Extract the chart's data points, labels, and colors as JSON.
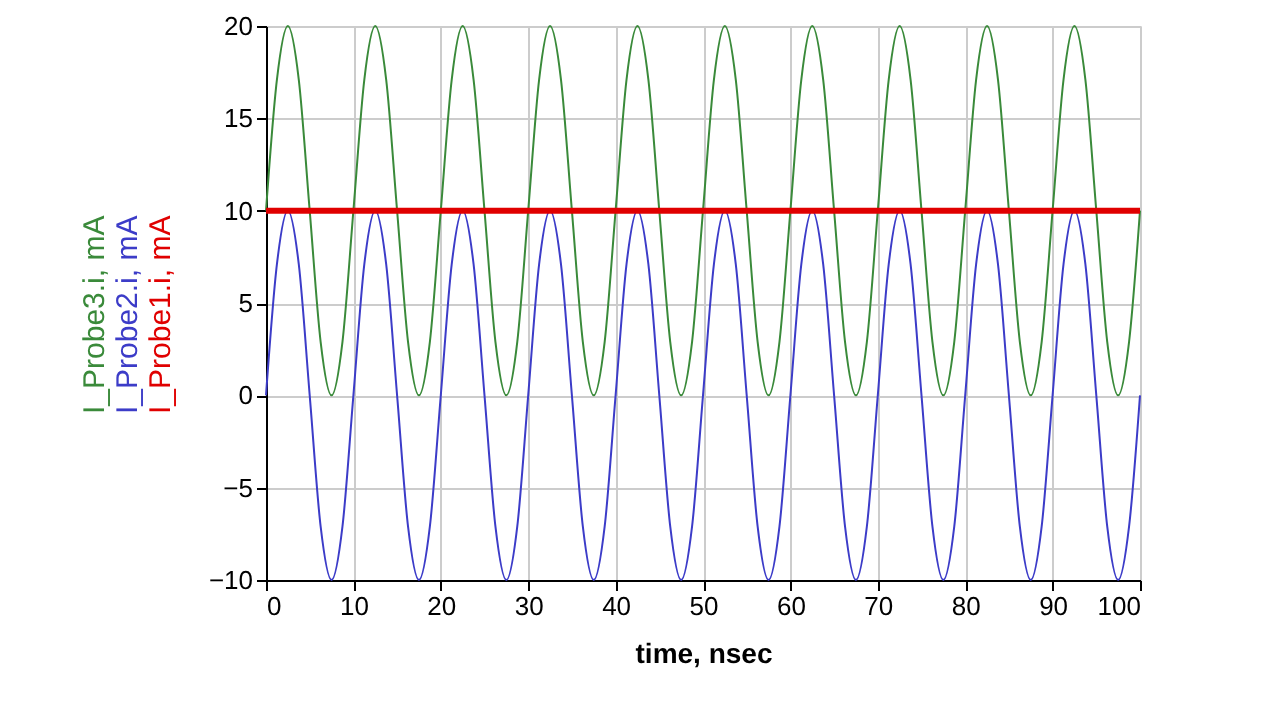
{
  "chart_data": {
    "type": "line",
    "xlabel": "time, nsec",
    "x": [
      0,
      1.25,
      2.5,
      3.75,
      5,
      6.25,
      7.5,
      8.75,
      10,
      11.25,
      12.5,
      13.75,
      15,
      16.25,
      17.5,
      18.75,
      20,
      21.25,
      22.5,
      23.75,
      25,
      26.25,
      27.5,
      28.75,
      30,
      31.25,
      32.5,
      33.75,
      35,
      36.25,
      37.5,
      38.75,
      40,
      41.25,
      42.5,
      43.75,
      45,
      46.25,
      47.5,
      48.75,
      50,
      51.25,
      52.5,
      53.75,
      55,
      56.25,
      57.5,
      58.75,
      60,
      61.25,
      62.5,
      63.75,
      65,
      66.25,
      67.5,
      68.75,
      70,
      71.25,
      72.5,
      73.75,
      75,
      76.25,
      77.5,
      78.75,
      80,
      81.25,
      82.5,
      83.75,
      85,
      86.25,
      87.5,
      88.75,
      90,
      91.25,
      92.5,
      93.75,
      95,
      96.25,
      97.5,
      98.75,
      100
    ],
    "series": [
      {
        "name": "I_Probe3.i, mA",
        "color": "#3a8a3a",
        "values": [
          10,
          17.1,
          20,
          17.1,
          10,
          2.9,
          0,
          2.9,
          10,
          17.1,
          20,
          17.1,
          10,
          2.9,
          0,
          2.9,
          10,
          17.1,
          20,
          17.1,
          10,
          2.9,
          0,
          2.9,
          10,
          17.1,
          20,
          17.1,
          10,
          2.9,
          0,
          2.9,
          10,
          17.1,
          20,
          17.1,
          10,
          2.9,
          0,
          2.9,
          10,
          17.1,
          20,
          17.1,
          10,
          2.9,
          0,
          2.9,
          10,
          17.1,
          20,
          17.1,
          10,
          2.9,
          0,
          2.9,
          10,
          17.1,
          20,
          17.1,
          10,
          2.9,
          0,
          2.9,
          10,
          17.1,
          20,
          17.1,
          10,
          2.9,
          0,
          2.9,
          10,
          17.1,
          20,
          17.1,
          10,
          2.9,
          0,
          2.9,
          10
        ]
      },
      {
        "name": "I_Probe2.i, mA",
        "color": "#3c3cc8",
        "values": [
          0,
          7.1,
          10,
          7.1,
          0,
          -7.1,
          -10,
          -7.1,
          0,
          7.1,
          10,
          7.1,
          0,
          -7.1,
          -10,
          -7.1,
          0,
          7.1,
          10,
          7.1,
          0,
          -7.1,
          -10,
          -7.1,
          0,
          7.1,
          10,
          7.1,
          0,
          -7.1,
          -10,
          -7.1,
          0,
          7.1,
          10,
          7.1,
          0,
          -7.1,
          -10,
          -7.1,
          0,
          7.1,
          10,
          7.1,
          0,
          -7.1,
          -10,
          -7.1,
          0,
          7.1,
          10,
          7.1,
          0,
          -7.1,
          -10,
          -7.1,
          0,
          7.1,
          10,
          7.1,
          0,
          -7.1,
          -10,
          -7.1,
          0,
          7.1,
          10,
          7.1,
          0,
          -7.1,
          -10,
          -7.1,
          0,
          7.1,
          10,
          7.1,
          0,
          -7.1,
          -10,
          -7.1,
          0
        ]
      },
      {
        "name": "I_Probe1.i, mA",
        "color": "#e00000",
        "x": [
          0,
          100
        ],
        "values": [
          10,
          10
        ]
      }
    ],
    "xlim": [
      0,
      100
    ],
    "xticks": [
      0,
      10,
      20,
      30,
      40,
      50,
      60,
      70,
      80,
      90,
      100
    ],
    "ylim": [
      -10,
      20
    ],
    "yticks": [
      -10,
      -5,
      0,
      5,
      10,
      15,
      20
    ],
    "grid": true,
    "legend": "left",
    "line_style": "solid",
    "marker": "none"
  }
}
